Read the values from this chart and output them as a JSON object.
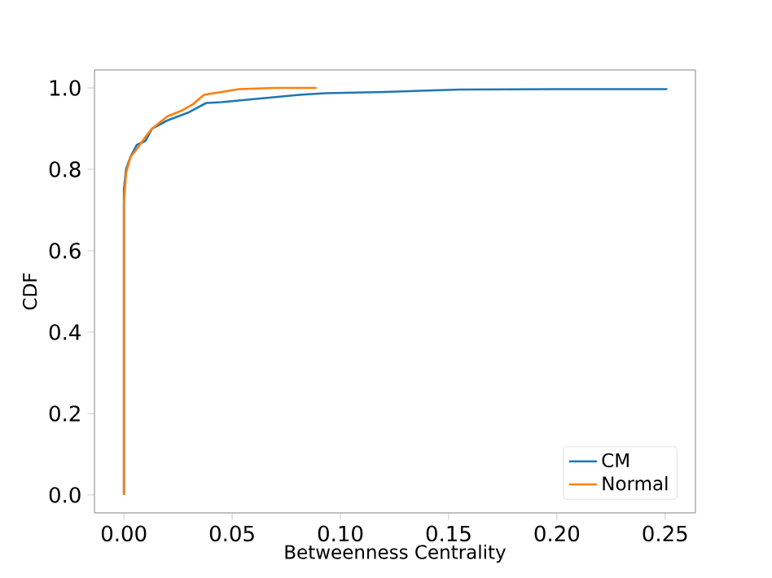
{
  "chart_data": {
    "type": "line",
    "xlabel": "Betweenness Centrality",
    "ylabel": "CDF",
    "xlim": [
      -0.0136,
      0.264
    ],
    "ylim": [
      -0.044,
      1.044
    ],
    "xticks": [
      {
        "value": 0,
        "label": "0.00"
      },
      {
        "value": 0.05,
        "label": "0.05"
      },
      {
        "value": 0.1,
        "label": "0.10"
      },
      {
        "value": 0.15,
        "label": "0.15"
      },
      {
        "value": 0.2,
        "label": "0.20"
      },
      {
        "value": 0.25,
        "label": "0.25"
      }
    ],
    "yticks": [
      {
        "value": 0,
        "label": "0.0"
      },
      {
        "value": 0.2,
        "label": "0.2"
      },
      {
        "value": 0.4,
        "label": "0.4"
      },
      {
        "value": 0.6,
        "label": "0.6"
      },
      {
        "value": 0.8,
        "label": "0.8"
      },
      {
        "value": 1,
        "label": "1.0"
      }
    ],
    "legend": "bottom right",
    "grid": false,
    "marker": "none",
    "line_style": "solid",
    "series": [
      {
        "name": "CM",
        "color": "#1f77b4",
        "x": [
          0,
          0,
          0.001,
          0.003,
          0.006,
          0.01,
          0.013,
          0.02,
          0.03,
          0.038,
          0.045,
          0.053,
          0.065,
          0.081,
          0.093,
          0.12,
          0.155,
          0.2,
          0.251
        ],
        "values": [
          0,
          0.75,
          0.8,
          0.83,
          0.86,
          0.87,
          0.9,
          0.92,
          0.94,
          0.963,
          0.965,
          0.969,
          0.975,
          0.983,
          0.987,
          0.99,
          0.996,
          0.997,
          0.997
        ]
      },
      {
        "name": "Normal",
        "color": "#ff7f0e",
        "x": [
          0,
          0,
          0.001,
          0.003,
          0.006,
          0.01,
          0.013,
          0.02,
          0.027,
          0.032,
          0.034,
          0.037,
          0.045,
          0.053,
          0.07,
          0.089
        ],
        "values": [
          0,
          0.72,
          0.79,
          0.83,
          0.85,
          0.88,
          0.9,
          0.93,
          0.945,
          0.96,
          0.97,
          0.983,
          0.99,
          0.997,
          1.0,
          1.0
        ]
      }
    ]
  }
}
